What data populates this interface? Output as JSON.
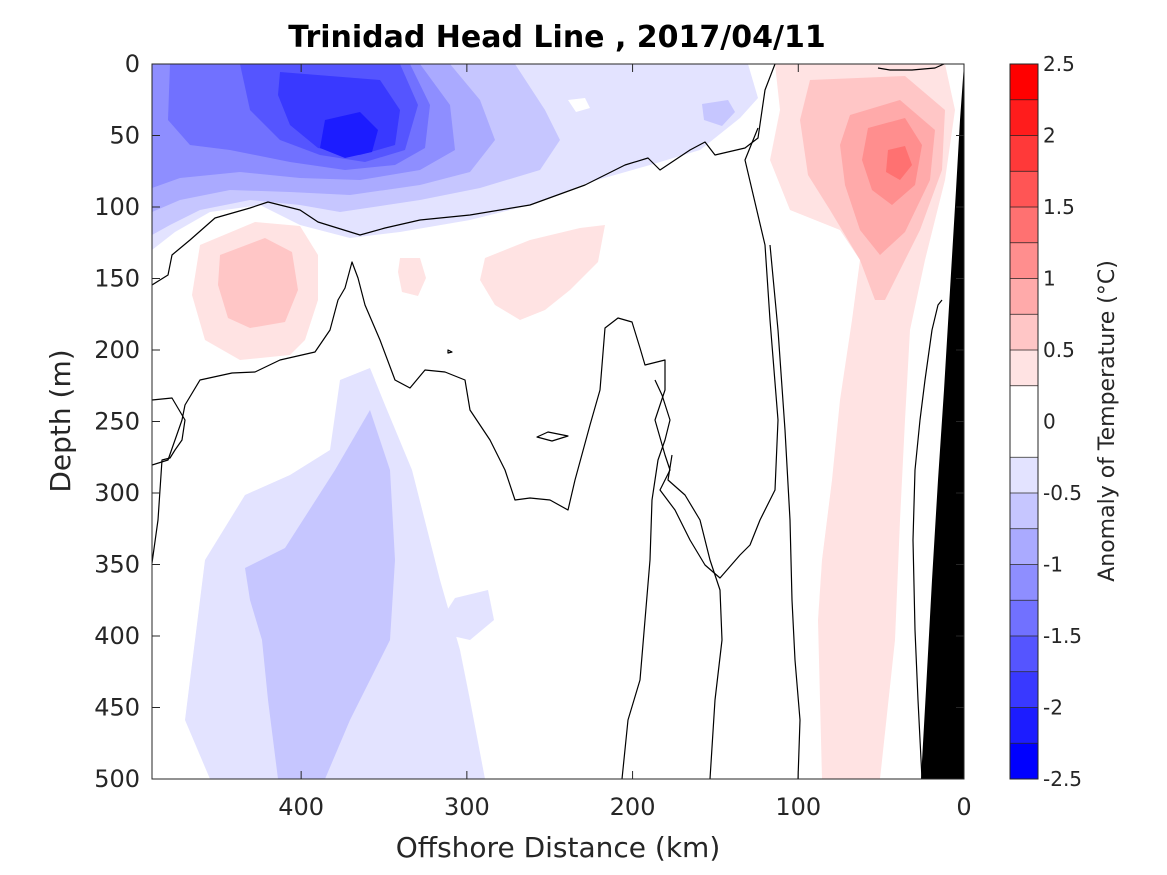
{
  "chart_data": {
    "type": "heatmap",
    "subtype": "filled-contour-section",
    "title": "Trinidad Head Line , 2017/04/11",
    "xlabel": "Offshore Distance (km)",
    "ylabel": "Depth (m)",
    "xlim": [
      490,
      0
    ],
    "x_reversed": true,
    "ylim": [
      0,
      500
    ],
    "y_reversed": true,
    "x_ticks": [
      400,
      300,
      200,
      100,
      0
    ],
    "y_ticks": [
      0,
      50,
      100,
      150,
      200,
      250,
      300,
      350,
      400,
      450,
      500
    ],
    "colorbar": {
      "label": "Anomaly of Temperature (°C)",
      "limits": [
        -2.5,
        2.5
      ],
      "ticks": [
        2.5,
        2,
        1.5,
        1,
        0.5,
        0,
        -0.5,
        -1,
        -1.5,
        -2,
        -2.5
      ],
      "tick_labels": [
        "2.5",
        "2",
        "1.5",
        "1",
        "0.5",
        "0",
        "-0.5",
        "-1",
        "-1.5",
        "-2",
        "-2.5"
      ],
      "levels": [
        -2.5,
        -2.25,
        -2.0,
        -1.75,
        -1.5,
        -1.25,
        -1.0,
        -0.75,
        -0.5,
        -0.25,
        0.25,
        0.5,
        0.75,
        1.0,
        1.25,
        1.5,
        1.75,
        2.0,
        2.25,
        2.5
      ],
      "colors": [
        "#0000ff",
        "#1c1cff",
        "#3939ff",
        "#5555ff",
        "#7171ff",
        "#8e8eff",
        "#aaaaff",
        "#c6c6ff",
        "#e3e3ff",
        "#ffffff",
        "#ffe3e3",
        "#ffc6c6",
        "#ffaaaa",
        "#ff8e8e",
        "#ff7171",
        "#ff5555",
        "#ff3939",
        "#ff1c1c",
        "#ff0000"
      ]
    },
    "features": [
      {
        "name": "near-surface cold core",
        "x_km": 372,
        "depth_m": 55,
        "anomaly_c": -2.0
      },
      {
        "name": "shelf warm core",
        "x_km": 42,
        "depth_m": 70,
        "anomaly_c": 1.25
      },
      {
        "name": "subsurface warm patch",
        "x_km": 425,
        "depth_m": 150,
        "anomaly_c": 0.75
      },
      {
        "name": "deep cold tongue",
        "x_km": 345,
        "depth_m": 400,
        "anomaly_c": -0.5
      }
    ],
    "zero_contour": "black line",
    "bathymetry_mask": "black"
  }
}
